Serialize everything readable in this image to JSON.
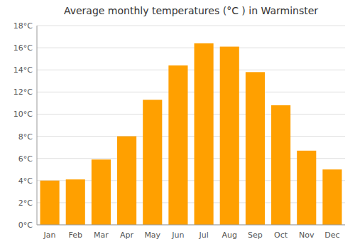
{
  "chart_data": {
    "type": "bar",
    "title": "Average monthly temperatures (°C ) in Warminster",
    "categories": [
      "Jan",
      "Feb",
      "Mar",
      "Apr",
      "May",
      "Jun",
      "Jul",
      "Aug",
      "Sep",
      "Oct",
      "Nov",
      "Dec"
    ],
    "values": [
      4.0,
      4.1,
      5.9,
      8.0,
      11.3,
      14.4,
      16.4,
      16.1,
      13.8,
      10.8,
      6.7,
      5.0
    ],
    "color": "#FFA000",
    "ylim": [
      0,
      18
    ],
    "yticks": [
      {
        "value": 0,
        "label": "0°C"
      },
      {
        "value": 2,
        "label": "2°C"
      },
      {
        "value": 4,
        "label": "4°C"
      },
      {
        "value": 6,
        "label": "6°C"
      },
      {
        "value": 8,
        "label": "8°C"
      },
      {
        "value": 10,
        "label": "10°C"
      },
      {
        "value": 12,
        "label": "12°C"
      },
      {
        "value": 14,
        "label": "14°C"
      },
      {
        "value": 16,
        "label": "16°C"
      },
      {
        "value": 18,
        "label": "18°C"
      }
    ],
    "grid": true
  }
}
